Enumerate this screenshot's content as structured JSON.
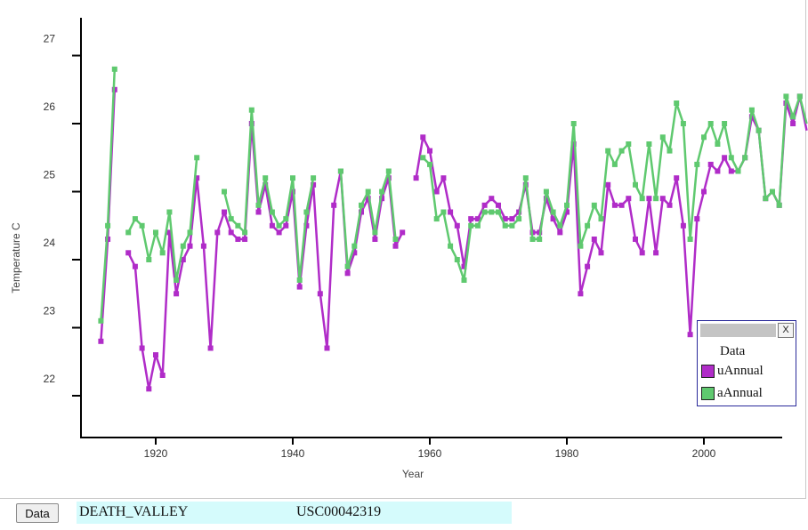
{
  "chart_data": {
    "type": "line",
    "xlabel": "Year",
    "ylabel": "Temperature C",
    "xlim": [
      1909,
      2014
    ],
    "ylim": [
      21.3,
      27.6
    ],
    "xticks": [
      "1920",
      "1940",
      "1960",
      "1980",
      "2000"
    ],
    "yticks": [
      "22",
      "23",
      "24",
      "25",
      "26",
      "27"
    ],
    "legend_position": "bottom-right",
    "series": [
      {
        "name": "uAnnual",
        "color": "#b02cc8",
        "points": [
          [
            1912,
            22.8
          ],
          [
            1913,
            24.3
          ],
          [
            1914,
            26.5
          ],
          [
            1916,
            24.1
          ],
          [
            1917,
            23.9
          ],
          [
            1918,
            22.7
          ],
          [
            1919,
            22.1
          ],
          [
            1920,
            22.6
          ],
          [
            1921,
            22.3
          ],
          [
            1922,
            24.4
          ],
          [
            1923,
            23.5
          ],
          [
            1924,
            24.0
          ],
          [
            1925,
            24.2
          ],
          [
            1926,
            25.2
          ],
          [
            1927,
            24.2
          ],
          [
            1928,
            22.7
          ],
          [
            1929,
            24.4
          ],
          [
            1930,
            24.7
          ],
          [
            1931,
            24.4
          ],
          [
            1932,
            24.3
          ],
          [
            1933,
            24.3
          ],
          [
            1934,
            26.0
          ],
          [
            1935,
            24.7
          ],
          [
            1936,
            25.1
          ],
          [
            1937,
            24.5
          ],
          [
            1938,
            24.4
          ],
          [
            1939,
            24.5
          ],
          [
            1940,
            25.0
          ],
          [
            1941,
            23.6
          ],
          [
            1942,
            24.5
          ],
          [
            1943,
            25.1
          ],
          [
            1944,
            23.5
          ],
          [
            1945,
            22.7
          ],
          [
            1946,
            24.8
          ],
          [
            1947,
            25.3
          ],
          [
            1948,
            23.8
          ],
          [
            1949,
            24.1
          ],
          [
            1950,
            24.7
          ],
          [
            1951,
            24.9
          ],
          [
            1952,
            24.3
          ],
          [
            1953,
            24.9
          ],
          [
            1954,
            25.2
          ],
          [
            1955,
            24.2
          ],
          [
            1956,
            24.4
          ],
          [
            1958,
            25.2
          ],
          [
            1959,
            25.8
          ],
          [
            1960,
            25.6
          ],
          [
            1961,
            25.0
          ],
          [
            1962,
            25.2
          ],
          [
            1963,
            24.7
          ],
          [
            1964,
            24.5
          ],
          [
            1965,
            23.9
          ],
          [
            1966,
            24.6
          ],
          [
            1967,
            24.6
          ],
          [
            1968,
            24.8
          ],
          [
            1969,
            24.9
          ],
          [
            1970,
            24.8
          ],
          [
            1971,
            24.6
          ],
          [
            1972,
            24.6
          ],
          [
            1973,
            24.7
          ],
          [
            1974,
            25.1
          ],
          [
            1975,
            24.4
          ],
          [
            1976,
            24.4
          ],
          [
            1977,
            24.9
          ],
          [
            1978,
            24.6
          ],
          [
            1979,
            24.4
          ],
          [
            1980,
            24.7
          ],
          [
            1981,
            25.7
          ],
          [
            1982,
            23.5
          ],
          [
            1983,
            23.9
          ],
          [
            1984,
            24.3
          ],
          [
            1985,
            24.1
          ],
          [
            1986,
            25.1
          ],
          [
            1987,
            24.8
          ],
          [
            1988,
            24.8
          ],
          [
            1989,
            24.9
          ],
          [
            1990,
            24.3
          ],
          [
            1991,
            24.1
          ],
          [
            1992,
            24.9
          ],
          [
            1993,
            24.1
          ],
          [
            1994,
            24.9
          ],
          [
            1995,
            24.8
          ],
          [
            1996,
            25.2
          ],
          [
            1997,
            24.5
          ],
          [
            1998,
            22.9
          ],
          [
            1999,
            24.6
          ],
          [
            2000,
            25.0
          ],
          [
            2001,
            25.4
          ],
          [
            2002,
            25.3
          ],
          [
            2003,
            25.5
          ],
          [
            2004,
            25.3
          ],
          [
            2005,
            25.3
          ],
          [
            2006,
            25.5
          ],
          [
            2007,
            26.1
          ],
          [
            2008,
            25.9
          ],
          [
            2009,
            24.9
          ],
          [
            2010,
            25.0
          ],
          [
            2011,
            24.8
          ],
          [
            2012,
            26.3
          ],
          [
            2013,
            26.0
          ],
          [
            2014,
            26.4
          ],
          [
            2015,
            25.9
          ]
        ]
      },
      {
        "name": "aAnnual",
        "color": "#5fc96f",
        "points": [
          [
            1912,
            23.1
          ],
          [
            1913,
            24.5
          ],
          [
            1914,
            26.8
          ],
          [
            1916,
            24.4
          ],
          [
            1917,
            24.6
          ],
          [
            1918,
            24.5
          ],
          [
            1919,
            24.0
          ],
          [
            1920,
            24.4
          ],
          [
            1921,
            24.1
          ],
          [
            1922,
            24.7
          ],
          [
            1923,
            23.7
          ],
          [
            1924,
            24.2
          ],
          [
            1925,
            24.4
          ],
          [
            1926,
            25.5
          ],
          [
            1930,
            25.0
          ],
          [
            1931,
            24.6
          ],
          [
            1932,
            24.5
          ],
          [
            1933,
            24.4
          ],
          [
            1934,
            26.2
          ],
          [
            1935,
            24.8
          ],
          [
            1936,
            25.2
          ],
          [
            1937,
            24.7
          ],
          [
            1938,
            24.5
          ],
          [
            1939,
            24.6
          ],
          [
            1940,
            25.2
          ],
          [
            1941,
            23.7
          ],
          [
            1942,
            24.7
          ],
          [
            1943,
            25.2
          ],
          [
            1947,
            25.3
          ],
          [
            1948,
            23.9
          ],
          [
            1949,
            24.2
          ],
          [
            1950,
            24.8
          ],
          [
            1951,
            25.0
          ],
          [
            1952,
            24.4
          ],
          [
            1953,
            25.0
          ],
          [
            1954,
            25.3
          ],
          [
            1955,
            24.3
          ],
          [
            1959,
            25.5
          ],
          [
            1960,
            25.4
          ],
          [
            1961,
            24.6
          ],
          [
            1962,
            24.7
          ],
          [
            1963,
            24.2
          ],
          [
            1964,
            24.0
          ],
          [
            1965,
            23.7
          ],
          [
            1966,
            24.5
          ],
          [
            1967,
            24.5
          ],
          [
            1968,
            24.7
          ],
          [
            1969,
            24.7
          ],
          [
            1970,
            24.7
          ],
          [
            1971,
            24.5
          ],
          [
            1972,
            24.5
          ],
          [
            1973,
            24.6
          ],
          [
            1974,
            25.2
          ],
          [
            1975,
            24.3
          ],
          [
            1976,
            24.3
          ],
          [
            1977,
            25.0
          ],
          [
            1978,
            24.7
          ],
          [
            1979,
            24.5
          ],
          [
            1980,
            24.8
          ],
          [
            1981,
            26.0
          ],
          [
            1982,
            24.2
          ],
          [
            1983,
            24.5
          ],
          [
            1984,
            24.8
          ],
          [
            1985,
            24.6
          ],
          [
            1986,
            25.6
          ],
          [
            1987,
            25.4
          ],
          [
            1988,
            25.6
          ],
          [
            1989,
            25.7
          ],
          [
            1990,
            25.1
          ],
          [
            1991,
            24.9
          ],
          [
            1992,
            25.7
          ],
          [
            1993,
            24.9
          ],
          [
            1994,
            25.8
          ],
          [
            1995,
            25.6
          ],
          [
            1996,
            26.3
          ],
          [
            1997,
            26.0
          ],
          [
            1998,
            24.3
          ],
          [
            1999,
            25.4
          ],
          [
            2000,
            25.8
          ],
          [
            2001,
            26.0
          ],
          [
            2002,
            25.7
          ],
          [
            2003,
            26.0
          ],
          [
            2004,
            25.5
          ],
          [
            2005,
            25.3
          ],
          [
            2006,
            25.5
          ],
          [
            2007,
            26.2
          ],
          [
            2008,
            25.9
          ],
          [
            2009,
            24.9
          ],
          [
            2010,
            25.0
          ],
          [
            2011,
            24.8
          ],
          [
            2012,
            26.4
          ],
          [
            2013,
            26.1
          ],
          [
            2014,
            26.4
          ],
          [
            2015,
            26.0
          ]
        ]
      }
    ]
  },
  "legend": {
    "title": "Data",
    "close_label": "X",
    "items": [
      {
        "label": "uAnnual",
        "color": "#b02cc8"
      },
      {
        "label": "aAnnual",
        "color": "#5fc96f"
      }
    ]
  },
  "footer": {
    "data_button_label": "Data",
    "station_name": "DEATH_VALLEY",
    "station_id": "USC00042319"
  }
}
